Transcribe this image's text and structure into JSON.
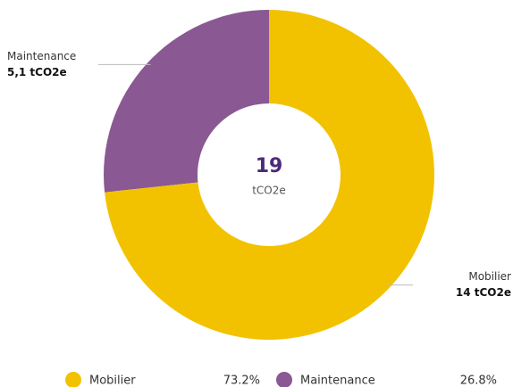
{
  "chart_data": {
    "type": "pie",
    "donut": true,
    "categories": [
      "Mobilier",
      "Maintenance"
    ],
    "values": [
      14,
      5.1
    ],
    "value_labels": [
      "14 tCO2e",
      "5,1 tCO2e"
    ],
    "colors": [
      "#f2c200",
      "#8a5893"
    ],
    "percentages": [
      {
        "value": 73.2,
        "label": "73.2%"
      },
      {
        "value": 26.8,
        "label": "26.8%"
      }
    ],
    "total": 19,
    "unit": "tCO2e"
  }
}
